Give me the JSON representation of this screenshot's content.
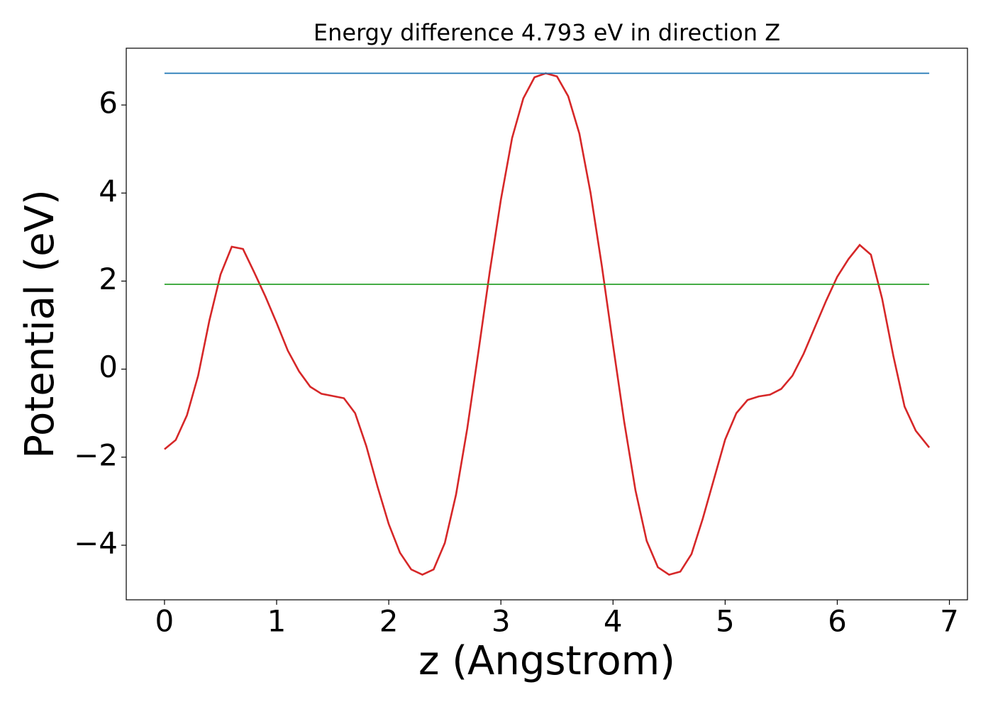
{
  "chart_data": {
    "type": "line",
    "title": "Energy difference 4.793 eV in direction Z",
    "xlabel": "z (Angstrom)",
    "ylabel": "Potential (eV)",
    "series": [
      {
        "color": "#d62728",
        "x": [
          0,
          0.1,
          0.2,
          0.3,
          0.4,
          0.5,
          0.6,
          0.7,
          0.8,
          0.9,
          1.0,
          1.1,
          1.2,
          1.3,
          1.4,
          1.5,
          1.6,
          1.7,
          1.8,
          1.9,
          2.0,
          2.1,
          2.2,
          2.3,
          2.4,
          2.5,
          2.6,
          2.7,
          2.8,
          2.9,
          3.0,
          3.1,
          3.2,
          3.3,
          3.4,
          3.5,
          3.6,
          3.7,
          3.8,
          3.9,
          4.0,
          4.1,
          4.2,
          4.3,
          4.4,
          4.5,
          4.6,
          4.7,
          4.8,
          4.9,
          5.0,
          5.1,
          5.2,
          5.3,
          5.4,
          5.5,
          5.6,
          5.7,
          5.8,
          5.9,
          6.0,
          6.1,
          6.2,
          6.3,
          6.4,
          6.5,
          6.6,
          6.7,
          6.82
        ],
        "values": [
          -1.82,
          -1.61,
          -1.05,
          -0.15,
          1.1,
          2.15,
          2.78,
          2.73,
          2.2,
          1.65,
          1.05,
          0.42,
          -0.05,
          -0.4,
          -0.56,
          -0.61,
          -0.66,
          -1.0,
          -1.75,
          -2.67,
          -3.52,
          -4.17,
          -4.55,
          -4.67,
          -4.55,
          -3.95,
          -2.85,
          -1.35,
          0.4,
          2.2,
          3.85,
          5.25,
          6.15,
          6.63,
          6.72,
          6.65,
          6.2,
          5.35,
          4.0,
          2.35,
          0.55,
          -1.2,
          -2.75,
          -3.9,
          -4.5,
          -4.67,
          -4.6,
          -4.2,
          -3.4,
          -2.5,
          -1.6,
          -1.0,
          -0.7,
          -0.62,
          -0.58,
          -0.45,
          -0.15,
          0.35,
          0.95,
          1.55,
          2.1,
          2.5,
          2.82,
          2.6,
          1.6,
          0.3,
          -0.85,
          -1.4,
          -1.78
        ]
      },
      {
        "color": "#1f77b4",
        "x": [
          0,
          6.82
        ],
        "values": [
          6.72,
          6.72
        ]
      },
      {
        "color": "#2ca02c",
        "x": [
          0,
          6.82
        ],
        "values": [
          1.927,
          1.927
        ]
      }
    ],
    "xlim": [
      -0.341,
      7.161
    ],
    "ylim": [
      -5.24,
      7.29
    ],
    "xticks": [
      0,
      1,
      2,
      3,
      4,
      5,
      6,
      7
    ],
    "yticks": [
      {
        "value": -4,
        "label": "−4"
      },
      {
        "value": -2,
        "label": "−2"
      },
      0,
      2,
      4,
      6
    ],
    "grid": false
  }
}
